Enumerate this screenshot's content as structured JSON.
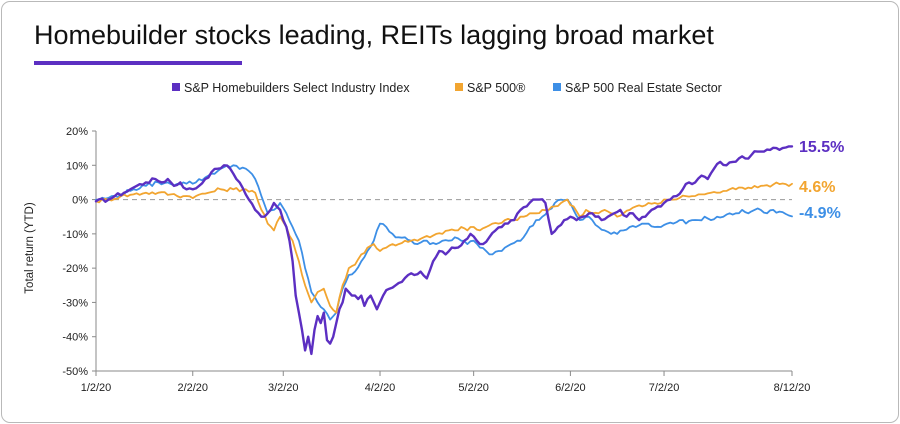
{
  "chart_data": {
    "type": "line",
    "title": "Homebuilder stocks leading, REITs lagging broad market",
    "xlabel": "",
    "ylabel": "Total return (YTD)",
    "ylim": [
      -50,
      20
    ],
    "yticks": [
      {
        "value": 20,
        "label": "20%"
      },
      {
        "value": 10,
        "label": "10%"
      },
      {
        "value": 0,
        "label": "0%"
      },
      {
        "value": -10,
        "label": "-10%"
      },
      {
        "value": -20,
        "label": "-20%"
      },
      {
        "value": -30,
        "label": "-30%"
      },
      {
        "value": -40,
        "label": "-40%"
      },
      {
        "value": -50,
        "label": "-50%"
      }
    ],
    "xlim": [
      0,
      223
    ],
    "xticks": [
      {
        "value": 0,
        "label": "1/2/20"
      },
      {
        "value": 31,
        "label": "2/2/20"
      },
      {
        "value": 60,
        "label": "3/2/20"
      },
      {
        "value": 91,
        "label": "4/2/20"
      },
      {
        "value": 121,
        "label": "5/2/20"
      },
      {
        "value": 152,
        "label": "6/2/20"
      },
      {
        "value": 182,
        "label": "7/2/20"
      },
      {
        "value": 223,
        "label": "8/12/20"
      }
    ],
    "grid": "horizontal-dashed-zero",
    "legend_position": "top",
    "series": [
      {
        "name": "S&P Homebuilders Select Industry Index",
        "color": "#5c2fc2",
        "end_label": "15.5%",
        "x": [
          0,
          4,
          6,
          9,
          11,
          13,
          16,
          19,
          21,
          23,
          25,
          27,
          29,
          31,
          33,
          35,
          37,
          39,
          41,
          43,
          46,
          49,
          51,
          53,
          55,
          57,
          59,
          61,
          62,
          63,
          64,
          65,
          66,
          67,
          68,
          69,
          70,
          71,
          72,
          73,
          74,
          75,
          76,
          77,
          78,
          79,
          80,
          81,
          82,
          83,
          84,
          85,
          86,
          87,
          88,
          89,
          90,
          91,
          92,
          94,
          96,
          98,
          100,
          102,
          104,
          106,
          108,
          110,
          112,
          114,
          116,
          118,
          120,
          122,
          124,
          126,
          128,
          130,
          132,
          134,
          136,
          138,
          140,
          142,
          144,
          146,
          148,
          150,
          152,
          154,
          156,
          158,
          160,
          162,
          164,
          166,
          168,
          170,
          172,
          174,
          176,
          178,
          180,
          182,
          184,
          186,
          188,
          190,
          192,
          194,
          196,
          198,
          200,
          202,
          204,
          206,
          208,
          210,
          212,
          214,
          216,
          218,
          220,
          222,
          223
        ],
        "values": [
          -0.5,
          0,
          1,
          2,
          3,
          4,
          5,
          6,
          5,
          6,
          4,
          5,
          3,
          3,
          4,
          6,
          8,
          9,
          10,
          9,
          5,
          0,
          -3,
          -5,
          -4,
          -1,
          -3,
          -8,
          -12,
          -18,
          -28,
          -33,
          -38,
          -44,
          -40,
          -45,
          -38,
          -34,
          -36,
          -33,
          -41,
          -42,
          -40,
          -36,
          -32,
          -30,
          -26,
          -27,
          -28,
          -28,
          -29,
          -28,
          -31,
          -29,
          -28,
          -30,
          -32,
          -30,
          -28,
          -26,
          -25,
          -24,
          -22,
          -22,
          -21,
          -23,
          -18,
          -15,
          -16,
          -14,
          -14,
          -12,
          -10,
          -12,
          -13,
          -11,
          -9,
          -8,
          -7,
          -6,
          -3,
          -2,
          0,
          0,
          -1,
          -10,
          -8,
          -6,
          -5,
          -6,
          -5,
          -4,
          -5,
          -6,
          -5,
          -4,
          -3,
          -5,
          -4,
          -6,
          -5,
          -3,
          -2,
          -1,
          0,
          1,
          3,
          5,
          5,
          7,
          6,
          9,
          11,
          10,
          11,
          12,
          12,
          13,
          14,
          14,
          14.5,
          15,
          15,
          15.5,
          15.5
        ],
        "smoothed": true
      },
      {
        "name": "S&P 500®",
        "color": "#f2a530",
        "end_label": "4.6%",
        "x": [
          0,
          4,
          8,
          12,
          16,
          20,
          24,
          28,
          32,
          36,
          40,
          44,
          48,
          51,
          53,
          55,
          57,
          59,
          61,
          63,
          65,
          67,
          69,
          71,
          73,
          75,
          77,
          79,
          81,
          83,
          85,
          87,
          89,
          91,
          93,
          95,
          97,
          99,
          101,
          103,
          105,
          107,
          109,
          111,
          113,
          115,
          117,
          119,
          121,
          123,
          125,
          127,
          129,
          131,
          133,
          135,
          137,
          139,
          141,
          143,
          145,
          147,
          149,
          151,
          153,
          155,
          157,
          159,
          161,
          163,
          165,
          167,
          169,
          171,
          173,
          175,
          177,
          179,
          181,
          183,
          185,
          187,
          189,
          191,
          193,
          195,
          197,
          199,
          201,
          203,
          205,
          207,
          209,
          211,
          213,
          215,
          217,
          219,
          221,
          223
        ],
        "values": [
          -0.5,
          0,
          1,
          1.5,
          2,
          2,
          1.5,
          1,
          1,
          2,
          3,
          3,
          3,
          2,
          -3,
          -7,
          -9,
          -5,
          -8,
          -12,
          -18,
          -25,
          -30,
          -27,
          -26,
          -31,
          -33,
          -25,
          -20,
          -19,
          -16,
          -14,
          -13,
          -15,
          -14,
          -13,
          -13,
          -12,
          -12,
          -12,
          -11,
          -11,
          -10,
          -10,
          -9,
          -9,
          -8,
          -9,
          -8,
          -9,
          -8,
          -7,
          -7,
          -6,
          -6,
          -6,
          -5,
          -4,
          -4,
          -3,
          -3,
          -2,
          -1,
          0,
          -2,
          -5,
          -3,
          -4,
          -4,
          -3,
          -4,
          -5,
          -4,
          -3,
          -2,
          -2,
          -1,
          -1,
          -1,
          0,
          0,
          0.5,
          1,
          1,
          1.5,
          1.5,
          2,
          2,
          2.5,
          3,
          3,
          3.5,
          3.5,
          4,
          4,
          4.2,
          4.4,
          4.5,
          4.5,
          4.6
        ],
        "smoothed": true
      },
      {
        "name": "S&P 500 Real Estate Sector",
        "color": "#3d8fe6",
        "end_label": "-4.9%",
        "x": [
          0,
          4,
          8,
          12,
          16,
          20,
          24,
          28,
          32,
          36,
          40,
          44,
          48,
          51,
          53,
          55,
          57,
          59,
          61,
          63,
          65,
          67,
          69,
          71,
          73,
          75,
          77,
          79,
          81,
          83,
          85,
          87,
          89,
          91,
          93,
          95,
          97,
          99,
          101,
          103,
          105,
          107,
          109,
          111,
          113,
          115,
          117,
          119,
          121,
          123,
          125,
          127,
          129,
          131,
          133,
          135,
          137,
          139,
          141,
          143,
          145,
          147,
          149,
          151,
          153,
          155,
          157,
          159,
          161,
          163,
          165,
          167,
          169,
          171,
          173,
          175,
          177,
          179,
          181,
          183,
          185,
          187,
          189,
          191,
          193,
          195,
          197,
          199,
          201,
          203,
          205,
          207,
          209,
          211,
          213,
          215,
          217,
          219,
          221,
          223
        ],
        "values": [
          0,
          0.5,
          1.5,
          3,
          4,
          5,
          4.5,
          5,
          5,
          7,
          9,
          10,
          9,
          6,
          1,
          -4,
          -3,
          -1,
          -4,
          -8,
          -12,
          -20,
          -27,
          -30,
          -32,
          -35,
          -33,
          -26,
          -22,
          -21,
          -18,
          -15,
          -12,
          -7,
          -8,
          -10,
          -11,
          -11,
          -12,
          -13,
          -12,
          -13,
          -13,
          -12,
          -12,
          -11,
          -12,
          -13,
          -12,
          -14,
          -15,
          -16,
          -15,
          -14,
          -13,
          -12,
          -11,
          -8,
          -6,
          -5,
          -3,
          -1,
          0,
          0,
          -3,
          -6,
          -5,
          -6,
          -8,
          -9,
          -10,
          -10,
          -9,
          -8,
          -8,
          -7,
          -7,
          -8,
          -8,
          -7,
          -7,
          -6,
          -7,
          -6,
          -6,
          -5,
          -6,
          -5,
          -5,
          -4,
          -4,
          -3,
          -4,
          -3,
          -3,
          -4,
          -3,
          -3.5,
          -4.2,
          -4.9
        ],
        "smoothed": true
      }
    ]
  }
}
